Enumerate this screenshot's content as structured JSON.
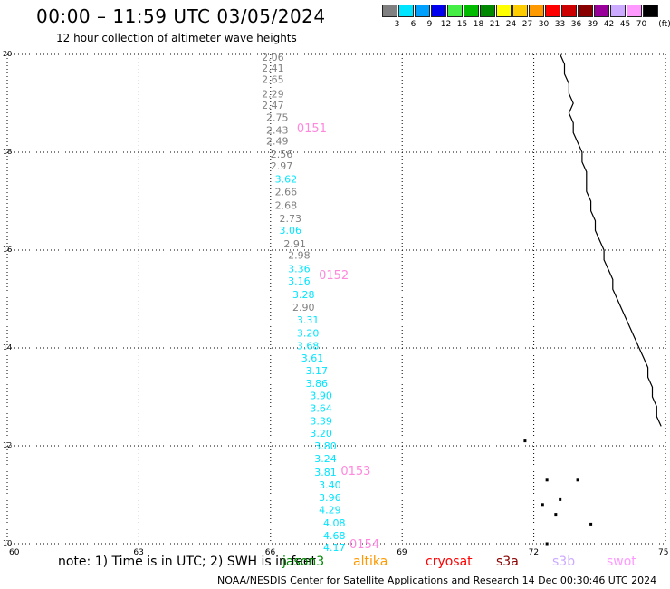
{
  "header": {
    "title": "00:00 – 11:59 UTC 03/05/2024",
    "subtitle": "12 hour collection of altimeter wave heights"
  },
  "legend": {
    "unit": "(ft)",
    "items": [
      {
        "label": "3",
        "color": "#808080"
      },
      {
        "label": "6",
        "color": "#00e5ff"
      },
      {
        "label": "9",
        "color": "#00a0ff"
      },
      {
        "label": "12",
        "color": "#0000ee"
      },
      {
        "label": "15",
        "color": "#44ee44"
      },
      {
        "label": "18",
        "color": "#00bb00"
      },
      {
        "label": "21",
        "color": "#008800"
      },
      {
        "label": "24",
        "color": "#ffff00"
      },
      {
        "label": "27",
        "color": "#ffcc00"
      },
      {
        "label": "30",
        "color": "#ff9900"
      },
      {
        "label": "33",
        "color": "#ff0000"
      },
      {
        "label": "36",
        "color": "#cc0000"
      },
      {
        "label": "39",
        "color": "#880000"
      },
      {
        "label": "42",
        "color": "#990099"
      },
      {
        "label": "45",
        "color": "#ccaaff"
      },
      {
        "label": "70",
        "color": "#ff99ff"
      },
      {
        "label": "",
        "color": "#000000"
      }
    ]
  },
  "chart_data": {
    "type": "scatter",
    "title": "00:00 – 11:59 UTC 03/05/2024",
    "subtitle": "12 hour collection of altimeter wave heights",
    "xlim": [
      60,
      75
    ],
    "ylim": [
      10,
      20
    ],
    "x_ticks": [
      60,
      63,
      66,
      69,
      72,
      75
    ],
    "y_ticks": [
      10,
      12,
      14,
      16,
      18,
      20
    ],
    "grid": true,
    "point_labels": [
      {
        "x": 65.8,
        "y": 19.94,
        "value": "2.06",
        "color": "#808080"
      },
      {
        "x": 65.8,
        "y": 19.72,
        "value": "2.41",
        "color": "#808080"
      },
      {
        "x": 65.8,
        "y": 19.49,
        "value": "2.65",
        "color": "#808080"
      },
      {
        "x": 65.8,
        "y": 19.19,
        "value": "2.29",
        "color": "#808080"
      },
      {
        "x": 65.8,
        "y": 18.96,
        "value": "2.47",
        "color": "#808080"
      },
      {
        "x": 65.9,
        "y": 18.71,
        "value": "2.75",
        "color": "#808080"
      },
      {
        "x": 65.9,
        "y": 18.45,
        "value": "2.43",
        "color": "#808080"
      },
      {
        "x": 65.9,
        "y": 18.23,
        "value": "2.49",
        "color": "#808080"
      },
      {
        "x": 66.0,
        "y": 17.96,
        "value": "2.56",
        "color": "#808080"
      },
      {
        "x": 66.0,
        "y": 17.72,
        "value": "2.97",
        "color": "#808080"
      },
      {
        "x": 66.1,
        "y": 17.45,
        "value": "3.62",
        "color": "#00e5ff"
      },
      {
        "x": 66.1,
        "y": 17.19,
        "value": "2.66",
        "color": "#808080"
      },
      {
        "x": 66.1,
        "y": 16.92,
        "value": "2.68",
        "color": "#808080"
      },
      {
        "x": 66.2,
        "y": 16.65,
        "value": "2.73",
        "color": "#808080"
      },
      {
        "x": 66.2,
        "y": 16.41,
        "value": "3.06",
        "color": "#00e5ff"
      },
      {
        "x": 66.3,
        "y": 16.13,
        "value": "2.91",
        "color": "#808080"
      },
      {
        "x": 66.4,
        "y": 15.9,
        "value": "2.98",
        "color": "#808080"
      },
      {
        "x": 66.4,
        "y": 15.62,
        "value": "3.36",
        "color": "#00e5ff"
      },
      {
        "x": 66.4,
        "y": 15.37,
        "value": "3.16",
        "color": "#00e5ff"
      },
      {
        "x": 66.5,
        "y": 15.09,
        "value": "3.28",
        "color": "#00e5ff"
      },
      {
        "x": 66.5,
        "y": 14.83,
        "value": "2.90",
        "color": "#808080"
      },
      {
        "x": 66.6,
        "y": 14.57,
        "value": "3.31",
        "color": "#00e5ff"
      },
      {
        "x": 66.6,
        "y": 14.31,
        "value": "3.20",
        "color": "#00e5ff"
      },
      {
        "x": 66.6,
        "y": 14.05,
        "value": "3.68",
        "color": "#00e5ff"
      },
      {
        "x": 66.7,
        "y": 13.8,
        "value": "3.61",
        "color": "#00e5ff"
      },
      {
        "x": 66.8,
        "y": 13.54,
        "value": "3.17",
        "color": "#00e5ff"
      },
      {
        "x": 66.8,
        "y": 13.28,
        "value": "3.86",
        "color": "#00e5ff"
      },
      {
        "x": 66.9,
        "y": 13.03,
        "value": "3.90",
        "color": "#00e5ff"
      },
      {
        "x": 66.9,
        "y": 12.77,
        "value": "3.64",
        "color": "#00e5ff"
      },
      {
        "x": 66.9,
        "y": 12.51,
        "value": "3.39",
        "color": "#00e5ff"
      },
      {
        "x": 66.9,
        "y": 12.26,
        "value": "3.20",
        "color": "#00e5ff"
      },
      {
        "x": 67.0,
        "y": 12.0,
        "value": "3.80",
        "color": "#00e5ff"
      },
      {
        "x": 67.0,
        "y": 11.74,
        "value": "3.24",
        "color": "#00e5ff"
      },
      {
        "x": 67.0,
        "y": 11.46,
        "value": "3.81",
        "color": "#00e5ff"
      },
      {
        "x": 67.1,
        "y": 11.2,
        "value": "3.40",
        "color": "#00e5ff"
      },
      {
        "x": 67.1,
        "y": 10.94,
        "value": "3.96",
        "color": "#00e5ff"
      },
      {
        "x": 67.1,
        "y": 10.69,
        "value": "4.29",
        "color": "#00e5ff"
      },
      {
        "x": 67.2,
        "y": 10.43,
        "value": "4.08",
        "color": "#00e5ff"
      },
      {
        "x": 67.2,
        "y": 10.17,
        "value": "4.68",
        "color": "#00e5ff"
      },
      {
        "x": 67.2,
        "y": 9.93,
        "value": "4.17",
        "color": "#00e5ff"
      }
    ],
    "track_labels": [
      {
        "x": 66.6,
        "y": 18.5,
        "text": "0151",
        "color": "#ff88dd"
      },
      {
        "x": 67.1,
        "y": 15.5,
        "text": "0152",
        "color": "#ff88dd"
      },
      {
        "x": 67.6,
        "y": 11.5,
        "text": "0153",
        "color": "#ff88dd"
      },
      {
        "x": 67.8,
        "y": 10.0,
        "text": "0154",
        "color": "#ff88dd"
      }
    ],
    "coastline": [
      [
        72.6,
        20.0
      ],
      [
        72.7,
        19.8
      ],
      [
        72.7,
        19.6
      ],
      [
        72.8,
        19.4
      ],
      [
        72.8,
        19.2
      ],
      [
        72.9,
        19.0
      ],
      [
        72.8,
        18.8
      ],
      [
        72.9,
        18.6
      ],
      [
        72.9,
        18.4
      ],
      [
        73.0,
        18.2
      ],
      [
        73.1,
        18.0
      ],
      [
        73.1,
        17.8
      ],
      [
        73.2,
        17.6
      ],
      [
        73.2,
        17.4
      ],
      [
        73.2,
        17.2
      ],
      [
        73.3,
        17.0
      ],
      [
        73.3,
        16.8
      ],
      [
        73.4,
        16.6
      ],
      [
        73.4,
        16.4
      ],
      [
        73.5,
        16.2
      ],
      [
        73.6,
        16.0
      ],
      [
        73.6,
        15.8
      ],
      [
        73.7,
        15.6
      ],
      [
        73.8,
        15.4
      ],
      [
        73.8,
        15.2
      ],
      [
        73.9,
        15.0
      ],
      [
        74.0,
        14.8
      ],
      [
        74.1,
        14.6
      ],
      [
        74.2,
        14.4
      ],
      [
        74.3,
        14.2
      ],
      [
        74.4,
        14.0
      ],
      [
        74.5,
        13.8
      ],
      [
        74.6,
        13.6
      ],
      [
        74.6,
        13.4
      ],
      [
        74.7,
        13.2
      ],
      [
        74.7,
        13.0
      ],
      [
        74.8,
        12.8
      ],
      [
        74.8,
        12.6
      ],
      [
        74.9,
        12.4
      ]
    ],
    "islands": [
      [
        71.8,
        12.1
      ],
      [
        72.3,
        11.3
      ],
      [
        72.2,
        10.8
      ],
      [
        72.6,
        10.9
      ],
      [
        72.5,
        10.6
      ],
      [
        73.0,
        11.3
      ],
      [
        73.3,
        10.4
      ],
      [
        72.3,
        10.0
      ]
    ]
  },
  "footer": {
    "note": "note:  1) Time is in UTC;  2) SWH is in feet",
    "satellites": [
      {
        "name": "jason3",
        "color": "#008800"
      },
      {
        "name": "altika",
        "color": "#ff9900"
      },
      {
        "name": "cryosat",
        "color": "#ff0000"
      },
      {
        "name": "s3a",
        "color": "#880000"
      },
      {
        "name": "s3b",
        "color": "#ccaaff"
      },
      {
        "name": "swot",
        "color": "#ff99ff"
      }
    ],
    "credit": "NOAA/NESDIS Center for Satellite Applications and Research    14 Dec 00:30:46 UTC 2024"
  }
}
